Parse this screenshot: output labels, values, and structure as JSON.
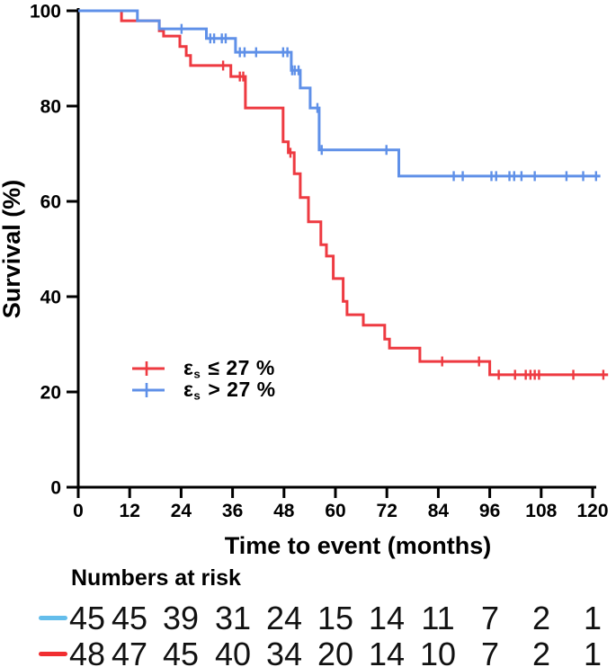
{
  "figure": {
    "background": "#ffffff",
    "text_color": "#000000",
    "y_axis_title": "Survival (%)",
    "x_axis_title": "Time to event (months)",
    "risk_title": "Numbers at risk",
    "legend": [
      {
        "id": "low-strain",
        "epsilon": "ε",
        "subscript": "s",
        "condition": "≤ 27 %",
        "color": "#ee3a41"
      },
      {
        "id": "high-strain",
        "epsilon": "ε",
        "subscript": "s",
        "condition": "> 27 %",
        "color": "#5f90e8"
      }
    ]
  },
  "chart_data": {
    "type": "line",
    "subtype": "kaplan-meier-step",
    "title": "",
    "xlabel": "Time to event (months)",
    "ylabel": "Survival (%)",
    "xlim": [
      0,
      120
    ],
    "ylim": [
      0,
      100
    ],
    "x_ticks": [
      0,
      12,
      24,
      36,
      48,
      60,
      72,
      84,
      96,
      108,
      120
    ],
    "y_ticks": [
      0,
      20,
      40,
      60,
      80,
      100
    ],
    "grid": false,
    "legend_position": "inside-left-middle",
    "series": [
      {
        "id": "low-strain",
        "name": "εs ≤ 27 %",
        "color": "#ee3a41",
        "end": 123.6,
        "steps": [
          [
            0,
            100
          ],
          [
            10.1,
            97.9
          ],
          [
            18.9,
            95.8
          ],
          [
            19.9,
            94.7
          ],
          [
            23.7,
            92.5
          ],
          [
            25.2,
            90.6
          ],
          [
            26.2,
            88.5
          ],
          [
            35.6,
            86.2
          ],
          [
            39.0,
            79.6
          ],
          [
            47.8,
            72.5
          ],
          [
            49.0,
            70.2
          ],
          [
            50.4,
            65.8
          ],
          [
            51.8,
            60.8
          ],
          [
            53.7,
            55.7
          ],
          [
            56.6,
            50.9
          ],
          [
            57.9,
            48.5
          ],
          [
            59.5,
            43.8
          ],
          [
            61.8,
            39.0
          ],
          [
            62.7,
            36.2
          ],
          [
            66.5,
            34.0
          ],
          [
            71.5,
            31.1
          ],
          [
            72.6,
            29.2
          ],
          [
            79.7,
            26.4
          ],
          [
            96.0,
            23.6
          ]
        ],
        "censors": [
          [
            33.8,
            88.5
          ],
          [
            37.7,
            86.2
          ],
          [
            38.5,
            86.2
          ],
          [
            49.5,
            70.2
          ],
          [
            84.9,
            26.4
          ],
          [
            93.5,
            26.4
          ],
          [
            98.1,
            23.6
          ],
          [
            101.9,
            23.6
          ],
          [
            104.4,
            23.6
          ],
          [
            105.5,
            23.6
          ],
          [
            106.5,
            23.6
          ],
          [
            107.5,
            23.6
          ],
          [
            115.5,
            23.6
          ],
          [
            122.5,
            23.6
          ]
        ]
      },
      {
        "id": "high-strain",
        "name": "εs > 27 %",
        "color": "#5f90e8",
        "end": 121.8,
        "steps": [
          [
            0,
            100
          ],
          [
            13.8,
            97.9
          ],
          [
            18.9,
            96.2
          ],
          [
            29.9,
            94.2
          ],
          [
            36.7,
            91.3
          ],
          [
            49.7,
            87.5
          ],
          [
            51.8,
            83.8
          ],
          [
            54.1,
            79.6
          ],
          [
            56.2,
            70.8
          ],
          [
            74.8,
            65.3
          ]
        ],
        "censors": [
          [
            24.1,
            96.2
          ],
          [
            30.8,
            94.2
          ],
          [
            31.7,
            94.2
          ],
          [
            33.5,
            94.2
          ],
          [
            34.4,
            94.2
          ],
          [
            37.7,
            91.3
          ],
          [
            38.8,
            91.3
          ],
          [
            41.5,
            91.3
          ],
          [
            47.8,
            91.3
          ],
          [
            48.8,
            91.3
          ],
          [
            49.9,
            87.5
          ],
          [
            50.5,
            87.5
          ],
          [
            51.4,
            87.5
          ],
          [
            55.8,
            79.6
          ],
          [
            56.8,
            70.8
          ],
          [
            71.9,
            70.8
          ],
          [
            87.6,
            65.3
          ],
          [
            89.7,
            65.3
          ],
          [
            96.4,
            65.3
          ],
          [
            97.5,
            65.3
          ],
          [
            100.6,
            65.3
          ],
          [
            101.7,
            65.3
          ],
          [
            103.4,
            65.3
          ],
          [
            106.5,
            65.3
          ],
          [
            113.9,
            65.3
          ],
          [
            117.8,
            65.3
          ],
          [
            120.8,
            65.3
          ]
        ]
      }
    ],
    "risk_table": {
      "title": "Numbers at risk",
      "months": [
        0,
        12,
        24,
        36,
        48,
        60,
        72,
        84,
        96,
        108,
        120
      ],
      "rows": [
        {
          "id": "high-strain",
          "name": "εs > 27 %",
          "color": "#64bdeb",
          "counts": [
            45,
            45,
            39,
            31,
            24,
            15,
            14,
            11,
            7,
            2,
            1
          ]
        },
        {
          "id": "low-strain",
          "name": "εs ≤ 27 %",
          "color": "#f12e31",
          "counts": [
            48,
            47,
            45,
            40,
            34,
            20,
            14,
            10,
            7,
            2,
            1
          ]
        }
      ]
    }
  }
}
